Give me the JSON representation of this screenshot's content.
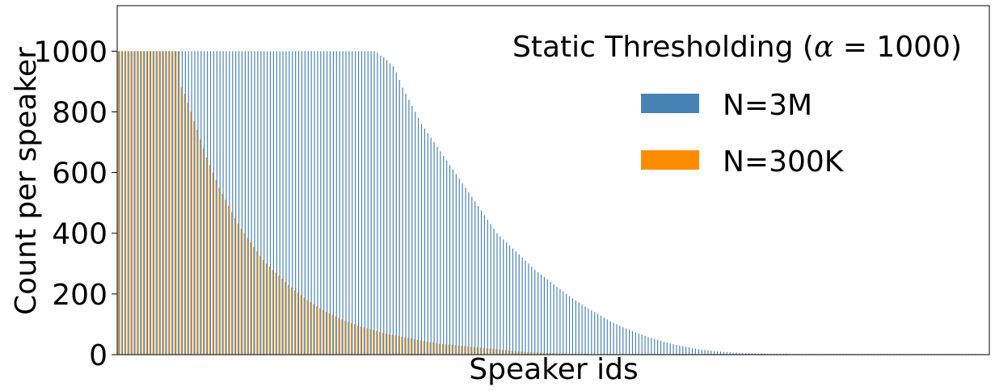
{
  "chart_data": {
    "type": "bar",
    "title": "",
    "xlabel": "Speaker ids",
    "ylabel": "Count per speaker",
    "ylim": [
      0,
      1150
    ],
    "yticks": [
      "0",
      "200",
      "400",
      "600",
      "800",
      "1000"
    ],
    "grid": false,
    "legend": {
      "placement": "top-right",
      "title_prefix": "Static Thresholding (",
      "title_alpha": "α",
      "title_eq": " = 1000",
      "title_suffix": ")"
    },
    "series": [
      {
        "name": "N=3M",
        "color": "#4682b4",
        "values": [
          1000,
          1000,
          1000,
          1000,
          1000,
          1000,
          1000,
          1000,
          1000,
          1000,
          1000,
          1000,
          1000,
          1000,
          1000,
          1000,
          1000,
          1000,
          1000,
          1000,
          1000,
          1000,
          1000,
          1000,
          1000,
          1000,
          1000,
          1000,
          1000,
          1000,
          1000,
          1000,
          1000,
          1000,
          1000,
          1000,
          1000,
          1000,
          1000,
          1000,
          1000,
          1000,
          1000,
          1000,
          1000,
          1000,
          1000,
          1000,
          1000,
          1000,
          1000,
          1000,
          1000,
          1000,
          1000,
          1000,
          1000,
          1000,
          1000,
          1000,
          1000,
          1000,
          1000,
          1000,
          1000,
          1000,
          1000,
          1000,
          1000,
          1000,
          1000,
          1000,
          1000,
          1000,
          1000,
          1000,
          1000,
          1000,
          1000,
          1000,
          1000,
          1000,
          995,
          985,
          980,
          970,
          960,
          950,
          930,
          905,
          880,
          860,
          840,
          820,
          800,
          780,
          760,
          745,
          730,
          715,
          700,
          685,
          670,
          655,
          640,
          625,
          610,
          595,
          580,
          565,
          550,
          535,
          520,
          505,
          490,
          475,
          460,
          445,
          430,
          415,
          400,
          390,
          380,
          370,
          360,
          350,
          340,
          330,
          320,
          310,
          300,
          290,
          280,
          272,
          264,
          256,
          248,
          240,
          232,
          224,
          216,
          208,
          200,
          193,
          186,
          179,
          172,
          165,
          158,
          152,
          146,
          140,
          134,
          128,
          122,
          116,
          110,
          105,
          100,
          95,
          90,
          86,
          82,
          78,
          74,
          70,
          66,
          62,
          58,
          55,
          52,
          49,
          46,
          43,
          40,
          37,
          34,
          32,
          30,
          28,
          26,
          24,
          22,
          20,
          18,
          16,
          15,
          14,
          13,
          12,
          11,
          10,
          9,
          8,
          8,
          7,
          7,
          6,
          6,
          5,
          5,
          5,
          4,
          4,
          4,
          4,
          3,
          3,
          3,
          3,
          3,
          3,
          3,
          2,
          2,
          2,
          2,
          2,
          2,
          2,
          2,
          2,
          2,
          2,
          2,
          2,
          2,
          2,
          2,
          2,
          2,
          2,
          2,
          2,
          2,
          2,
          2,
          2,
          2,
          2,
          2,
          2,
          2,
          2,
          2,
          2,
          2,
          2,
          2,
          2,
          2,
          2,
          2,
          2,
          2,
          2,
          2,
          2,
          2,
          2,
          2,
          2,
          2,
          2,
          2,
          2,
          2,
          2,
          2,
          2,
          2,
          2,
          2
        ]
      },
      {
        "name": "N=300K",
        "color": "#ff8c00",
        "values": [
          1000,
          1000,
          1000,
          1000,
          1000,
          1000,
          1000,
          1000,
          1000,
          1000,
          1000,
          1000,
          1000,
          1000,
          1000,
          1000,
          1000,
          1000,
          1000,
          1000,
          880,
          860,
          830,
          800,
          770,
          740,
          710,
          680,
          650,
          625,
          600,
          575,
          550,
          530,
          510,
          490,
          470,
          450,
          432,
          415,
          400,
          385,
          370,
          355,
          340,
          326,
          312,
          300,
          290,
          280,
          270,
          260,
          250,
          240,
          230,
          221,
          212,
          204,
          196,
          188,
          180,
          173,
          166,
          159,
          153,
          147,
          141,
          136,
          131,
          126,
          121,
          116,
          112,
          108,
          104,
          100,
          96,
          93,
          90,
          87,
          84,
          81,
          78,
          75,
          72,
          69,
          67,
          65,
          63,
          61,
          59,
          57,
          55,
          53,
          51,
          49,
          47,
          45,
          43,
          41,
          40,
          38,
          36,
          35,
          34,
          33,
          32,
          31,
          30,
          29,
          28,
          27,
          26,
          25,
          24,
          23,
          22,
          21,
          20,
          19,
          18,
          17,
          16,
          15,
          14,
          13,
          12,
          11,
          10,
          9,
          8,
          8,
          7,
          7,
          6,
          6,
          5,
          5,
          5,
          4,
          4,
          4,
          4,
          3,
          3,
          3,
          3,
          3,
          3,
          3,
          2,
          2,
          2,
          2,
          2,
          2,
          2,
          2,
          2,
          2,
          2,
          2,
          2,
          2,
          2,
          2,
          2,
          2,
          2,
          2,
          2,
          2,
          2,
          2,
          2,
          2,
          2,
          2,
          2,
          2,
          2,
          2,
          2,
          2,
          2,
          2,
          2,
          2,
          2,
          2,
          2,
          2,
          2,
          2,
          2,
          2,
          2,
          2,
          2,
          2,
          2,
          2,
          2,
          2,
          2,
          2,
          2,
          2,
          2,
          2,
          2,
          2,
          2,
          2,
          2,
          2,
          2,
          2,
          2,
          2,
          2,
          2,
          2,
          2,
          2,
          2,
          2,
          2,
          2,
          2,
          2,
          2,
          2,
          2,
          2,
          2,
          2,
          2,
          2,
          2,
          2,
          2,
          2,
          2,
          2,
          2,
          2,
          2,
          2,
          2,
          2,
          2,
          2,
          2,
          2,
          2,
          2,
          2,
          2,
          2,
          2,
          2,
          2,
          2,
          2,
          2,
          2,
          2,
          2,
          2,
          2,
          2,
          2,
          2,
          2,
          2,
          2
        ]
      }
    ]
  }
}
